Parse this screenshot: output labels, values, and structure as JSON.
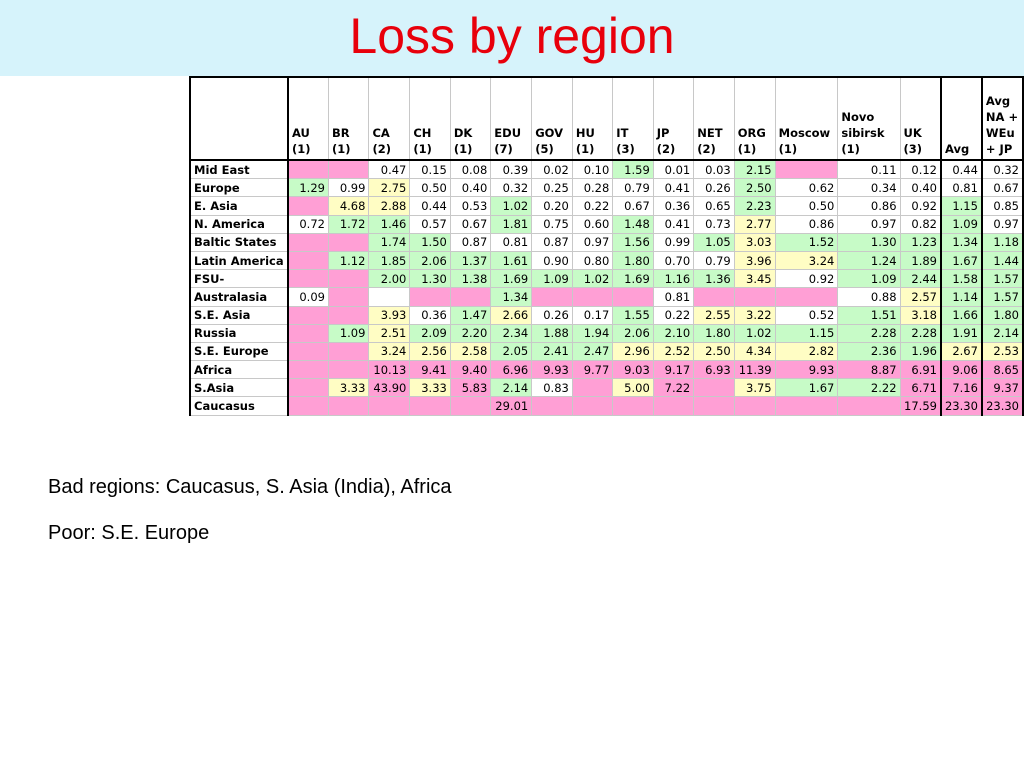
{
  "title": "Loss by region",
  "columns": [
    {
      "name": "AU",
      "count": "(1)"
    },
    {
      "name": "BR",
      "count": "(1)"
    },
    {
      "name": "CA",
      "count": "(2)"
    },
    {
      "name": "CH",
      "count": "(1)"
    },
    {
      "name": "DK",
      "count": "(1)"
    },
    {
      "name": "EDU",
      "count": "(7)"
    },
    {
      "name": "GOV",
      "count": "(5)"
    },
    {
      "name": "HU",
      "count": "(1)"
    },
    {
      "name": "IT",
      "count": "(3)"
    },
    {
      "name": "JP",
      "count": "(2)"
    },
    {
      "name": "NET",
      "count": "(2)"
    },
    {
      "name": "ORG",
      "count": "(1)"
    },
    {
      "name": "Moscow",
      "count": "(1)"
    },
    {
      "name": "Novo\nsibirsk",
      "count": "(1)"
    },
    {
      "name": "UK",
      "count": "(3)"
    },
    {
      "name": "Avg",
      "count": ""
    },
    {
      "name": "Avg\nNA +\nWEu\n+ JP",
      "count": ""
    }
  ],
  "rows": [
    {
      "region": "Mid East",
      "cells": [
        [
          "",
          "p"
        ],
        [
          "",
          "p"
        ],
        [
          "0.47",
          "w"
        ],
        [
          "0.15",
          "w"
        ],
        [
          "0.08",
          "w"
        ],
        [
          "0.39",
          "w"
        ],
        [
          "0.02",
          "w"
        ],
        [
          "0.10",
          "w"
        ],
        [
          "1.59",
          "g"
        ],
        [
          "0.01",
          "w"
        ],
        [
          "0.03",
          "w"
        ],
        [
          "2.15",
          "g"
        ],
        [
          "",
          "p"
        ],
        [
          "0.11",
          "w"
        ],
        [
          "0.12",
          "w"
        ],
        [
          "0.44",
          "w"
        ],
        [
          "0.32",
          "w"
        ]
      ]
    },
    {
      "region": "Europe",
      "cells": [
        [
          "1.29",
          "g"
        ],
        [
          "0.99",
          "w"
        ],
        [
          "2.75",
          "y"
        ],
        [
          "0.50",
          "w"
        ],
        [
          "0.40",
          "w"
        ],
        [
          "0.32",
          "w"
        ],
        [
          "0.25",
          "w"
        ],
        [
          "0.28",
          "w"
        ],
        [
          "0.79",
          "w"
        ],
        [
          "0.41",
          "w"
        ],
        [
          "0.26",
          "w"
        ],
        [
          "2.50",
          "g"
        ],
        [
          "0.62",
          "w"
        ],
        [
          "0.34",
          "w"
        ],
        [
          "0.40",
          "w"
        ],
        [
          "0.81",
          "w"
        ],
        [
          "0.67",
          "w"
        ]
      ]
    },
    {
      "region": "E. Asia",
      "cells": [
        [
          "",
          "p"
        ],
        [
          "4.68",
          "y"
        ],
        [
          "2.88",
          "y"
        ],
        [
          "0.44",
          "w"
        ],
        [
          "0.53",
          "w"
        ],
        [
          "1.02",
          "g"
        ],
        [
          "0.20",
          "w"
        ],
        [
          "0.22",
          "w"
        ],
        [
          "0.67",
          "w"
        ],
        [
          "0.36",
          "w"
        ],
        [
          "0.65",
          "w"
        ],
        [
          "2.23",
          "g"
        ],
        [
          "0.50",
          "w"
        ],
        [
          "0.86",
          "w"
        ],
        [
          "0.92",
          "w"
        ],
        [
          "1.15",
          "g"
        ],
        [
          "0.85",
          "w"
        ]
      ]
    },
    {
      "region": "N. America",
      "cells": [
        [
          "0.72",
          "w"
        ],
        [
          "1.72",
          "g"
        ],
        [
          "1.46",
          "g"
        ],
        [
          "0.57",
          "w"
        ],
        [
          "0.67",
          "w"
        ],
        [
          "1.81",
          "g"
        ],
        [
          "0.75",
          "w"
        ],
        [
          "0.60",
          "w"
        ],
        [
          "1.48",
          "g"
        ],
        [
          "0.41",
          "w"
        ],
        [
          "0.73",
          "w"
        ],
        [
          "2.77",
          "y"
        ],
        [
          "0.86",
          "w"
        ],
        [
          "0.97",
          "w"
        ],
        [
          "0.82",
          "w"
        ],
        [
          "1.09",
          "g"
        ],
        [
          "0.97",
          "w"
        ]
      ]
    },
    {
      "region": "Baltic States",
      "cells": [
        [
          "",
          "p"
        ],
        [
          "",
          "p"
        ],
        [
          "1.74",
          "g"
        ],
        [
          "1.50",
          "g"
        ],
        [
          "0.87",
          "w"
        ],
        [
          "0.81",
          "w"
        ],
        [
          "0.87",
          "w"
        ],
        [
          "0.97",
          "w"
        ],
        [
          "1.56",
          "g"
        ],
        [
          "0.99",
          "w"
        ],
        [
          "1.05",
          "g"
        ],
        [
          "3.03",
          "y"
        ],
        [
          "1.52",
          "g"
        ],
        [
          "1.30",
          "g"
        ],
        [
          "1.23",
          "g"
        ],
        [
          "1.34",
          "g"
        ],
        [
          "1.18",
          "g"
        ]
      ]
    },
    {
      "region": "Latin America",
      "cells": [
        [
          "",
          "p"
        ],
        [
          "1.12",
          "g"
        ],
        [
          "1.85",
          "g"
        ],
        [
          "2.06",
          "g"
        ],
        [
          "1.37",
          "g"
        ],
        [
          "1.61",
          "g"
        ],
        [
          "0.90",
          "w"
        ],
        [
          "0.80",
          "w"
        ],
        [
          "1.80",
          "g"
        ],
        [
          "0.70",
          "w"
        ],
        [
          "0.79",
          "w"
        ],
        [
          "3.96",
          "y"
        ],
        [
          "3.24",
          "y"
        ],
        [
          "1.24",
          "g"
        ],
        [
          "1.89",
          "g"
        ],
        [
          "1.67",
          "g"
        ],
        [
          "1.44",
          "g"
        ]
      ]
    },
    {
      "region": "FSU-",
      "cells": [
        [
          "",
          "p"
        ],
        [
          "",
          "p"
        ],
        [
          "2.00",
          "g"
        ],
        [
          "1.30",
          "g"
        ],
        [
          "1.38",
          "g"
        ],
        [
          "1.69",
          "g"
        ],
        [
          "1.09",
          "g"
        ],
        [
          "1.02",
          "g"
        ],
        [
          "1.69",
          "g"
        ],
        [
          "1.16",
          "g"
        ],
        [
          "1.36",
          "g"
        ],
        [
          "3.45",
          "y"
        ],
        [
          "0.92",
          "w"
        ],
        [
          "1.09",
          "g"
        ],
        [
          "2.44",
          "g"
        ],
        [
          "1.58",
          "g"
        ],
        [
          "1.57",
          "g"
        ]
      ]
    },
    {
      "region": "Australasia",
      "cells": [
        [
          "0.09",
          "w"
        ],
        [
          "",
          "p"
        ],
        [
          "",
          "w"
        ],
        [
          "",
          "p"
        ],
        [
          "",
          "p"
        ],
        [
          "1.34",
          "g"
        ],
        [
          "",
          "p"
        ],
        [
          "",
          "p"
        ],
        [
          "",
          "p"
        ],
        [
          "0.81",
          "w"
        ],
        [
          "",
          "p"
        ],
        [
          "",
          "p"
        ],
        [
          "",
          "p"
        ],
        [
          "0.88",
          "w"
        ],
        [
          "2.57",
          "y"
        ],
        [
          "1.14",
          "g"
        ],
        [
          "1.57",
          "g"
        ]
      ]
    },
    {
      "region": "S.E. Asia",
      "cells": [
        [
          "",
          "p"
        ],
        [
          "",
          "p"
        ],
        [
          "3.93",
          "y"
        ],
        [
          "0.36",
          "w"
        ],
        [
          "1.47",
          "g"
        ],
        [
          "2.66",
          "y"
        ],
        [
          "0.26",
          "w"
        ],
        [
          "0.17",
          "w"
        ],
        [
          "1.55",
          "g"
        ],
        [
          "0.22",
          "w"
        ],
        [
          "2.55",
          "y"
        ],
        [
          "3.22",
          "y"
        ],
        [
          "0.52",
          "w"
        ],
        [
          "1.51",
          "g"
        ],
        [
          "3.18",
          "y"
        ],
        [
          "1.66",
          "g"
        ],
        [
          "1.80",
          "g"
        ]
      ]
    },
    {
      "region": "Russia",
      "cells": [
        [
          "",
          "p"
        ],
        [
          "1.09",
          "g"
        ],
        [
          "2.51",
          "y"
        ],
        [
          "2.09",
          "g"
        ],
        [
          "2.20",
          "g"
        ],
        [
          "2.34",
          "g"
        ],
        [
          "1.88",
          "g"
        ],
        [
          "1.94",
          "g"
        ],
        [
          "2.06",
          "g"
        ],
        [
          "2.10",
          "g"
        ],
        [
          "1.80",
          "g"
        ],
        [
          "1.02",
          "g"
        ],
        [
          "1.15",
          "g"
        ],
        [
          "2.28",
          "g"
        ],
        [
          "2.28",
          "g"
        ],
        [
          "1.91",
          "g"
        ],
        [
          "2.14",
          "g"
        ]
      ]
    },
    {
      "region": "S.E. Europe",
      "cells": [
        [
          "",
          "p"
        ],
        [
          "",
          "p"
        ],
        [
          "3.24",
          "y"
        ],
        [
          "2.56",
          "y"
        ],
        [
          "2.58",
          "y"
        ],
        [
          "2.05",
          "g"
        ],
        [
          "2.41",
          "g"
        ],
        [
          "2.47",
          "g"
        ],
        [
          "2.96",
          "y"
        ],
        [
          "2.52",
          "y"
        ],
        [
          "2.50",
          "y"
        ],
        [
          "4.34",
          "y"
        ],
        [
          "2.82",
          "y"
        ],
        [
          "2.36",
          "g"
        ],
        [
          "1.96",
          "g"
        ],
        [
          "2.67",
          "y"
        ],
        [
          "2.53",
          "y"
        ]
      ]
    },
    {
      "region": "Africa",
      "cells": [
        [
          "",
          "p"
        ],
        [
          "",
          "p"
        ],
        [
          "10.13",
          "p"
        ],
        [
          "9.41",
          "p"
        ],
        [
          "9.40",
          "p"
        ],
        [
          "6.96",
          "p"
        ],
        [
          "9.93",
          "p"
        ],
        [
          "9.77",
          "p"
        ],
        [
          "9.03",
          "p"
        ],
        [
          "9.17",
          "p"
        ],
        [
          "6.93",
          "p"
        ],
        [
          "11.39",
          "p"
        ],
        [
          "9.93",
          "p"
        ],
        [
          "8.87",
          "p"
        ],
        [
          "6.91",
          "p"
        ],
        [
          "9.06",
          "p"
        ],
        [
          "8.65",
          "p"
        ]
      ]
    },
    {
      "region": "S.Asia",
      "cells": [
        [
          "",
          "p"
        ],
        [
          "3.33",
          "y"
        ],
        [
          "43.90",
          "p"
        ],
        [
          "3.33",
          "y"
        ],
        [
          "5.83",
          "p"
        ],
        [
          "2.14",
          "g"
        ],
        [
          "0.83",
          "w"
        ],
        [
          "",
          "p"
        ],
        [
          "5.00",
          "y"
        ],
        [
          "7.22",
          "p"
        ],
        [
          "",
          "p"
        ],
        [
          "3.75",
          "y"
        ],
        [
          "1.67",
          "g"
        ],
        [
          "2.22",
          "g"
        ],
        [
          "6.71",
          "p"
        ],
        [
          "7.16",
          "p"
        ],
        [
          "9.37",
          "p"
        ]
      ]
    },
    {
      "region": "Caucasus",
      "cells": [
        [
          "",
          "p"
        ],
        [
          "",
          "p"
        ],
        [
          "",
          "p"
        ],
        [
          "",
          "p"
        ],
        [
          "",
          "p"
        ],
        [
          "29.01",
          "p"
        ],
        [
          "",
          "p"
        ],
        [
          "",
          "p"
        ],
        [
          "",
          "p"
        ],
        [
          "",
          "p"
        ],
        [
          "",
          "p"
        ],
        [
          "",
          "p"
        ],
        [
          "",
          "p"
        ],
        [
          "",
          "p"
        ],
        [
          "17.59",
          "p"
        ],
        [
          "23.30",
          "p"
        ],
        [
          "23.30",
          "p"
        ]
      ]
    }
  ],
  "notes": [
    "Bad regions: Caucasus, S. Asia (India), Africa",
    "Poor: S.E. Europe"
  ],
  "colors": {
    "pink": "#ff9fd5",
    "green": "#c7fbc7",
    "yellow": "#fffdc4",
    "title": "#e8000b",
    "title_bg": "#d6f3fb"
  }
}
